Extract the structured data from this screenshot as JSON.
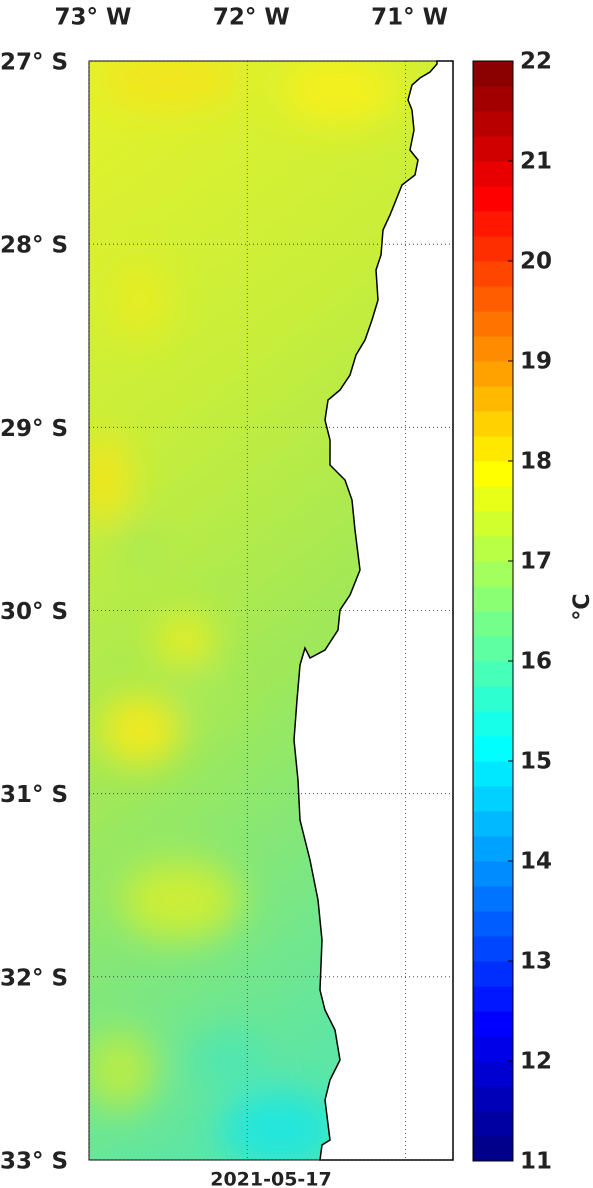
{
  "map": {
    "lonlim": [
      -73,
      -70.7
    ],
    "latlim": [
      -33,
      -27
    ],
    "lon_ticks": [
      {
        "value": -73,
        "label": "73° W"
      },
      {
        "value": -72,
        "label": "72° W"
      },
      {
        "value": -71,
        "label": "71° W"
      }
    ],
    "lat_ticks": [
      {
        "value": -27,
        "label": "27° S"
      },
      {
        "value": -28,
        "label": "28° S"
      },
      {
        "value": -29,
        "label": "29° S"
      },
      {
        "value": -30,
        "label": "30° S"
      },
      {
        "value": -31,
        "label": "31° S"
      },
      {
        "value": -32,
        "label": "32° S"
      },
      {
        "value": -33,
        "label": "33° S"
      }
    ],
    "date": "2021-05-17",
    "grid": true
  },
  "colorbar": {
    "clim": [
      11,
      22
    ],
    "ticks": [
      11,
      12,
      13,
      14,
      15,
      16,
      17,
      18,
      19,
      20,
      21,
      22
    ],
    "label": "°C",
    "colormap": "jet",
    "steps": 44
  }
}
